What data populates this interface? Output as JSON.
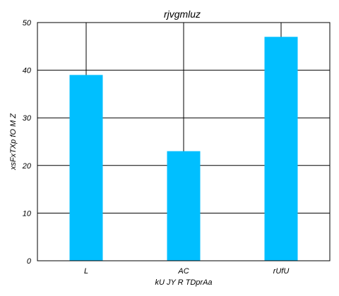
{
  "chart_data": {
    "type": "bar",
    "title": "rjvgmluz",
    "xlabel": "kU JY R TDprAa",
    "ylabel": "xsFxTXp fO M Z",
    "categories": [
      "L",
      "AC",
      "rUfU"
    ],
    "series": [
      {
        "values": [
          39,
          23,
          47
        ]
      }
    ],
    "ylim": [
      0,
      50
    ],
    "yticks": [
      0,
      10,
      20,
      30,
      40,
      50
    ],
    "grid": true,
    "bar_color": "#00bfff",
    "grid_color": "#000000"
  }
}
